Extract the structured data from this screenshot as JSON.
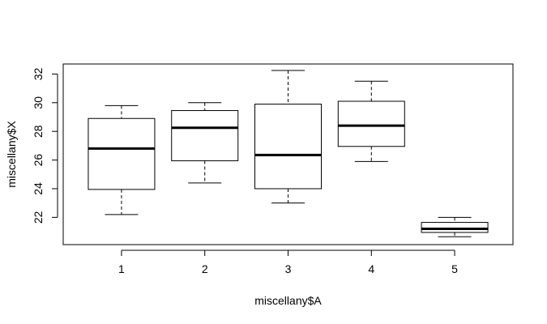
{
  "chart_data": {
    "type": "boxplot",
    "xlabel": "miscellany$A",
    "ylabel": "miscellany$X",
    "categories": [
      "1",
      "2",
      "3",
      "4",
      "5"
    ],
    "y_ticks": [
      "22",
      "24",
      "26",
      "28",
      "30",
      "32"
    ],
    "ylim": [
      20.1,
      32.7
    ],
    "grid": false,
    "boxes": [
      {
        "category": "1",
        "whisker_low": 22.2,
        "q1": 23.95,
        "median": 26.8,
        "q3": 28.9,
        "whisker_high": 29.8
      },
      {
        "category": "2",
        "whisker_low": 24.4,
        "q1": 25.95,
        "median": 28.25,
        "q3": 29.45,
        "whisker_high": 30.0
      },
      {
        "category": "3",
        "whisker_low": 23.0,
        "q1": 24.0,
        "median": 26.35,
        "q3": 29.9,
        "whisker_high": 32.25
      },
      {
        "category": "4",
        "whisker_low": 25.9,
        "q1": 26.95,
        "median": 28.4,
        "q3": 30.1,
        "whisker_high": 31.5
      },
      {
        "category": "5",
        "whisker_low": 20.65,
        "q1": 20.95,
        "median": 21.2,
        "q3": 21.65,
        "whisker_high": 22.0
      }
    ]
  }
}
